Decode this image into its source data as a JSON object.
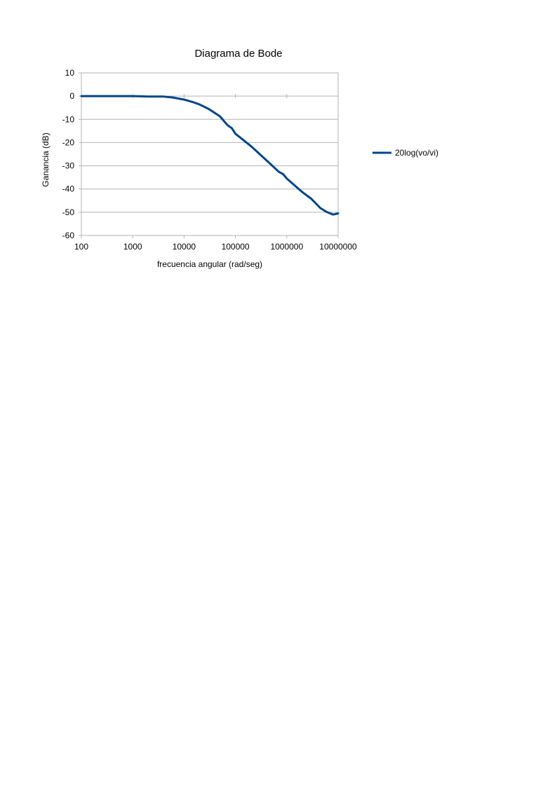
{
  "chart_data": {
    "type": "line",
    "title": "Diagrama de Bode",
    "xlabel": "frecuencia angular (rad/seg)",
    "ylabel": "Ganancia (dB)",
    "x_scale": "log",
    "xlim": [
      100,
      10000000
    ],
    "ylim": [
      -60,
      10
    ],
    "x_ticks": [
      "100",
      "1000",
      "10000",
      "100000",
      "1000000",
      "10000000"
    ],
    "y_ticks": [
      "10",
      "0",
      "-10",
      "-20",
      "-30",
      "-40",
      "-50",
      "-60"
    ],
    "grid": "horizontal",
    "legend_position": "right",
    "series": [
      {
        "name": "20log(vo/vi)",
        "color": "#004586",
        "points": [
          [
            100,
            0
          ],
          [
            300,
            0
          ],
          [
            1000,
            0
          ],
          [
            2000,
            -0.2
          ],
          [
            4000,
            -0.2
          ],
          [
            6000,
            -0.6
          ],
          [
            10000,
            -1.5
          ],
          [
            15000,
            -2.6
          ],
          [
            20000,
            -3.6
          ],
          [
            30000,
            -5.5
          ],
          [
            50000,
            -8.7
          ],
          [
            70000,
            -12.5
          ],
          [
            85000,
            -13.8
          ],
          [
            100000,
            -16.2
          ],
          [
            200000,
            -21.5
          ],
          [
            400000,
            -27.6
          ],
          [
            600000,
            -31.2
          ],
          [
            700000,
            -32.6
          ],
          [
            850000,
            -33.6
          ],
          [
            1000000,
            -35.5
          ],
          [
            2000000,
            -41.3
          ],
          [
            3000000,
            -44.2
          ],
          [
            4500000,
            -48.2
          ],
          [
            6000000,
            -49.9
          ],
          [
            8000000,
            -51
          ],
          [
            10000000,
            -50.5
          ]
        ]
      }
    ]
  }
}
